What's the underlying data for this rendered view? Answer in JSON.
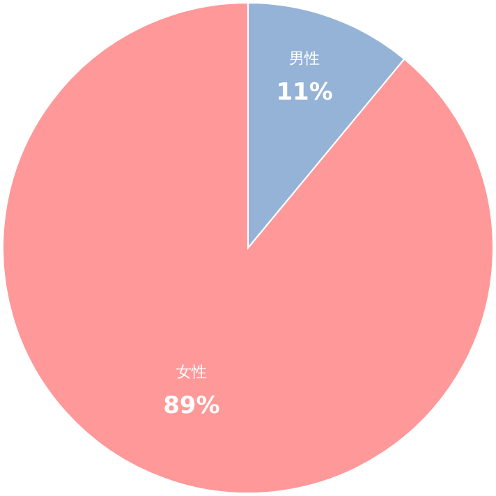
{
  "chart_data": {
    "type": "pie",
    "categories": [
      "男性",
      "女性"
    ],
    "values": [
      11,
      89
    ],
    "colors": [
      "#95b3d7",
      "#ff9999"
    ],
    "value_labels": [
      "11%",
      "89%"
    ]
  }
}
